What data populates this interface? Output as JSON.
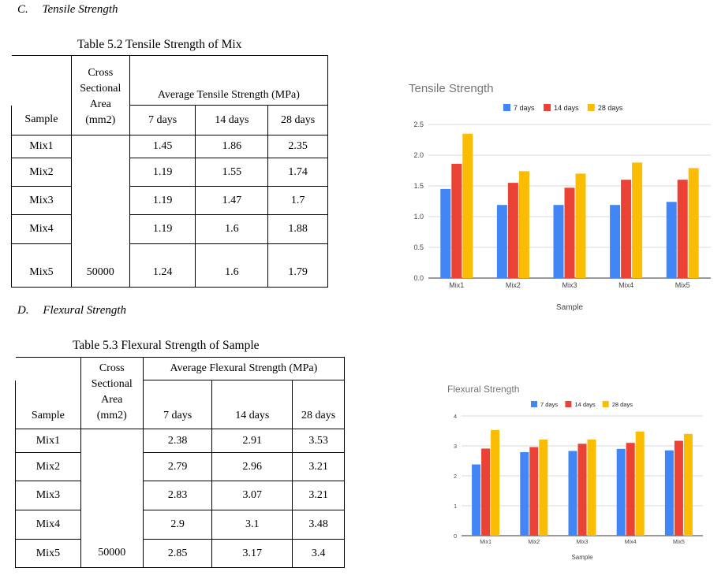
{
  "section_c": {
    "letter": "C.",
    "title": "Tensile Strength"
  },
  "section_d": {
    "letter": "D.",
    "title": "Flexural Strength"
  },
  "table1": {
    "caption": "Table 5.2 Tensile Strength of Mix",
    "header": {
      "sample": "Sample",
      "area_line1": "Cross",
      "area_line2": "Sectional",
      "area_line3": "Area",
      "area_line4": "(mm2)",
      "group": "Average Tensile Strength (MPa)",
      "d7": "7 days",
      "d14": "14 days",
      "d28": "28 days"
    },
    "area_value": "50000",
    "rows": [
      {
        "sample": "Mix1",
        "d7": "1.45",
        "d14": "1.86",
        "d28": "2.35"
      },
      {
        "sample": "Mix2",
        "d7": "1.19",
        "d14": "1.55",
        "d28": "1.74"
      },
      {
        "sample": "Mix3",
        "d7": "1.19",
        "d14": "1.47",
        "d28": "1.7"
      },
      {
        "sample": "Mix4",
        "d7": "1.19",
        "d14": "1.6",
        "d28": "1.88"
      },
      {
        "sample": "Mix5",
        "d7": "1.24",
        "d14": "1.6",
        "d28": "1.79"
      }
    ]
  },
  "table2": {
    "caption": "Table 5.3 Flexural Strength of Sample",
    "header": {
      "sample": "Sample",
      "area_line1": "Cross",
      "area_line2": "Sectional",
      "area_line3": "Area",
      "area_line4": "(mm2)",
      "group": "Average Flexural Strength (MPa)",
      "d7": "7 days",
      "d14": "14 days",
      "d28": "28 days"
    },
    "area_value": "50000",
    "rows": [
      {
        "sample": "Mix1",
        "d7": "2.38",
        "d14": "2.91",
        "d28": "3.53"
      },
      {
        "sample": "Mix2",
        "d7": "2.79",
        "d14": "2.96",
        "d28": "3.21"
      },
      {
        "sample": "Mix3",
        "d7": "2.83",
        "d14": "3.07",
        "d28": "3.21"
      },
      {
        "sample": "Mix4",
        "d7": "2.9",
        "d14": "3.1",
        "d28": "3.48"
      },
      {
        "sample": "Mix5",
        "d7": "2.85",
        "d14": "3.17",
        "d28": "3.4"
      }
    ]
  },
  "colors": {
    "d7": "#4285F4",
    "d14": "#EA4335",
    "d28": "#FBBC04",
    "title": "#757575",
    "grid": "#d9d9d9",
    "axis": "#333333"
  },
  "chart_data": [
    {
      "type": "bar",
      "title": "Tensile Strength",
      "xlabel": "Sample",
      "ylabel": "",
      "categories": [
        "Mix1",
        "Mix2",
        "Mix3",
        "Mix4",
        "Mix5"
      ],
      "series": [
        {
          "name": "7 days",
          "values": [
            1.45,
            1.19,
            1.19,
            1.19,
            1.24
          ]
        },
        {
          "name": "14 days",
          "values": [
            1.86,
            1.55,
            1.47,
            1.6,
            1.6
          ]
        },
        {
          "name": "28 days",
          "values": [
            2.35,
            1.74,
            1.7,
            1.88,
            1.79
          ]
        }
      ],
      "ylim": [
        0,
        2.5
      ],
      "yticks": [
        "0.0",
        "0.5",
        "1.0",
        "1.5",
        "2.0",
        "2.5"
      ],
      "legend": "top-center",
      "grid": true
    },
    {
      "type": "bar",
      "title": "Flexural Strength",
      "xlabel": "Sample",
      "ylabel": "",
      "categories": [
        "Mix1",
        "Mix2",
        "Mix3",
        "Mix4",
        "Mix5"
      ],
      "series": [
        {
          "name": "7 days",
          "values": [
            2.38,
            2.79,
            2.83,
            2.9,
            2.85
          ]
        },
        {
          "name": "14 days",
          "values": [
            2.91,
            2.96,
            3.07,
            3.1,
            3.17
          ]
        },
        {
          "name": "28 days",
          "values": [
            3.53,
            3.21,
            3.21,
            3.48,
            3.4
          ]
        }
      ],
      "ylim": [
        0,
        4
      ],
      "yticks": [
        "0",
        "1",
        "2",
        "3",
        "4"
      ],
      "legend": "top-center",
      "grid": true
    }
  ]
}
